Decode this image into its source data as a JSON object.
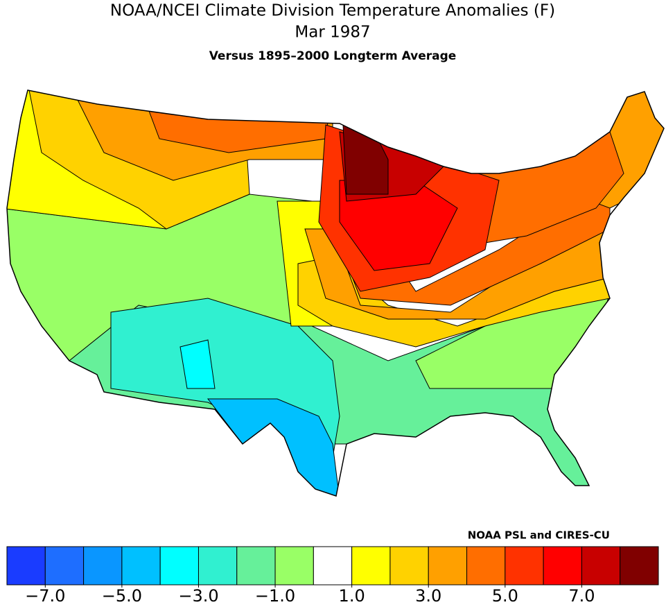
{
  "title": "NOAA/NCEI Climate Division Temperature Anomalies (F)",
  "period": "Mar 1987",
  "subtitle": "Versus 1895–2000 Longterm Average",
  "credit": "NOAA PSL and CIRES-CU",
  "colorbar": {
    "colors": [
      "#1a3cff",
      "#1e6eff",
      "#0a96ff",
      "#00c0ff",
      "#00ffff",
      "#30f0d0",
      "#66f09a",
      "#99ff66",
      "#ffffff",
      "#ffff00",
      "#ffd200",
      "#ffa000",
      "#ff6e00",
      "#ff3200",
      "#ff0000",
      "#c80000",
      "#800000"
    ],
    "xlim": [
      -8,
      9
    ],
    "ticks": [
      {
        "value": -7,
        "label": "−7.0"
      },
      {
        "value": -5,
        "label": "−5.0"
      },
      {
        "value": -3,
        "label": "−3.0"
      },
      {
        "value": -1,
        "label": "−1.0"
      },
      {
        "value": 1,
        "label": "1.0"
      },
      {
        "value": 3,
        "label": "3.0"
      },
      {
        "value": 5,
        "label": "5.0"
      },
      {
        "value": 7,
        "label": "7.0"
      }
    ]
  }
}
